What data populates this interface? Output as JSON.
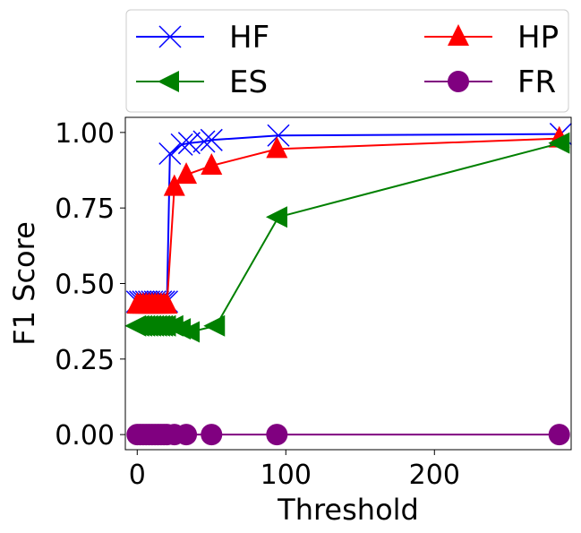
{
  "chart_data": {
    "type": "line",
    "title": "",
    "xlabel": "Threshold",
    "ylabel": "F1 Score",
    "xlim": [
      -8,
      292
    ],
    "ylim": [
      -0.05,
      1.05
    ],
    "xticks": [
      0,
      100,
      200
    ],
    "yticks": [
      0.0,
      0.25,
      0.5,
      0.75,
      1.0
    ],
    "xtick_labels": [
      "0",
      "100",
      "200"
    ],
    "ytick_labels": [
      "0.00",
      "0.25",
      "0.50",
      "0.75",
      "1.00"
    ],
    "grid": false,
    "legend": {
      "position": "top",
      "columns": 2
    },
    "series": [
      {
        "name": "HF",
        "color": "#0000ff",
        "marker": "x",
        "x": [
          0,
          2,
          4,
          6,
          8,
          10,
          12,
          14,
          16,
          18,
          20,
          22,
          30,
          35,
          45,
          50,
          95,
          285
        ],
        "y": [
          0.44,
          0.44,
          0.44,
          0.44,
          0.44,
          0.44,
          0.44,
          0.44,
          0.44,
          0.44,
          0.44,
          0.93,
          0.96,
          0.965,
          0.97,
          0.975,
          0.99,
          0.995
        ]
      },
      {
        "name": "HP",
        "color": "#ff0000",
        "marker": "triangle-up",
        "x": [
          0,
          2,
          4,
          6,
          8,
          10,
          12,
          14,
          16,
          18,
          20,
          25,
          33,
          50,
          94,
          284
        ],
        "y": [
          0.43,
          0.43,
          0.43,
          0.43,
          0.43,
          0.43,
          0.43,
          0.43,
          0.43,
          0.43,
          0.43,
          0.82,
          0.86,
          0.89,
          0.945,
          0.98
        ]
      },
      {
        "name": "ES",
        "color": "#008000",
        "marker": "triangle-left",
        "x": [
          0,
          2,
          4,
          6,
          8,
          10,
          12,
          14,
          16,
          18,
          20,
          25,
          30,
          36,
          53,
          95,
          285
        ],
        "y": [
          0.36,
          0.36,
          0.36,
          0.36,
          0.36,
          0.36,
          0.36,
          0.36,
          0.36,
          0.36,
          0.36,
          0.36,
          0.35,
          0.34,
          0.36,
          0.72,
          0.965
        ]
      },
      {
        "name": "FR",
        "color": "#800080",
        "marker": "circle",
        "x": [
          0,
          2,
          4,
          6,
          8,
          10,
          12,
          14,
          16,
          18,
          20,
          25,
          33,
          50,
          94,
          284
        ],
        "y": [
          0,
          0,
          0,
          0,
          0,
          0,
          0,
          0,
          0,
          0,
          0,
          0,
          0,
          0,
          0,
          0
        ]
      }
    ]
  }
}
